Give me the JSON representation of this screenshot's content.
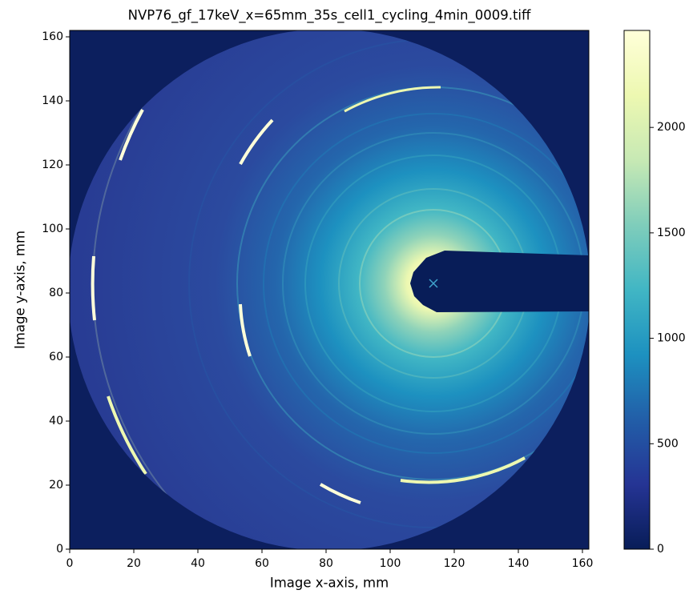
{
  "chart_data": {
    "type": "image",
    "title": "NVP76_gf_17keV_x=65mm_35s_cell1_cycling_4min_0009.tiff",
    "xlabel": "Image x-axis, mm",
    "ylabel": "Image y-axis, mm",
    "xlim": [
      0,
      162
    ],
    "ylim": [
      0,
      162
    ],
    "xticks": [
      0,
      20,
      40,
      60,
      80,
      100,
      120,
      140,
      160
    ],
    "yticks": [
      0,
      20,
      40,
      60,
      80,
      100,
      120,
      140,
      160
    ],
    "colorbar": {
      "lim": [
        0,
        2460
      ],
      "ticks": [
        0,
        500,
        1000,
        1500,
        2000
      ]
    },
    "colormap": [
      "#081d58",
      "#253494",
      "#225ea8",
      "#1d91c0",
      "#41b6c4",
      "#7fcdbb",
      "#c7e9b4",
      "#edf8b1",
      "#ffffd9"
    ],
    "markers": [
      {
        "x": 113.5,
        "y": 83,
        "color": "#3fa3cc"
      }
    ]
  }
}
